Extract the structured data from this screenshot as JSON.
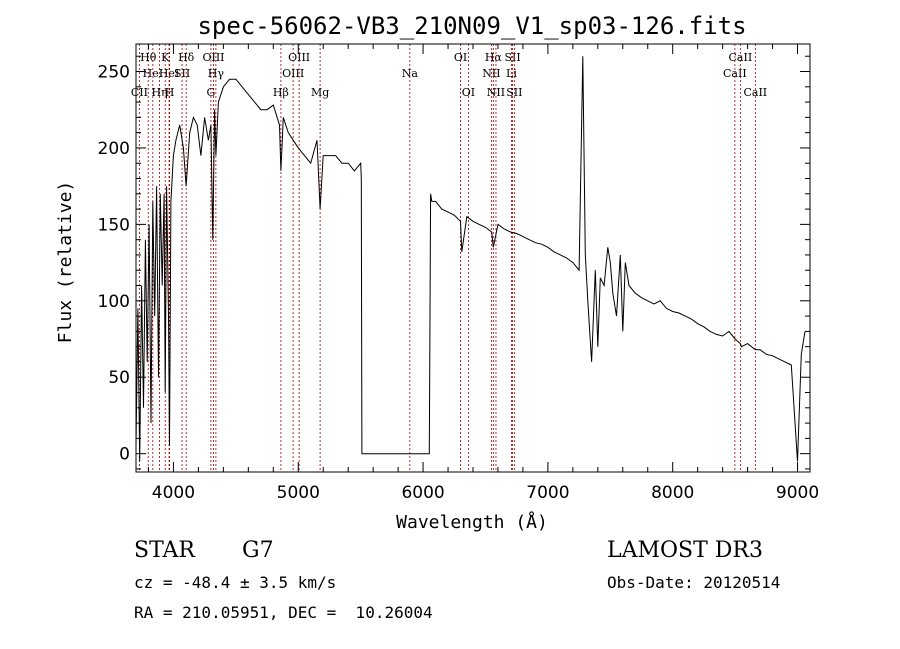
{
  "chart_data": {
    "type": "line",
    "title": "spec-56062-VB3_210N09_V1_sp03-126.fits",
    "xlabel": "Wavelength (Å)",
    "ylabel": "Flux (relative)",
    "xlim": [
      3700,
      9100
    ],
    "ylim": [
      -12,
      268
    ],
    "xticks": [
      4000,
      5000,
      6000,
      7000,
      8000,
      9000
    ],
    "yticks": [
      0,
      50,
      100,
      150,
      200,
      250
    ],
    "series": [
      {
        "name": "flux",
        "x": [
          3700,
          3715,
          3730,
          3745,
          3760,
          3775,
          3790,
          3805,
          3820,
          3835,
          3850,
          3865,
          3880,
          3895,
          3910,
          3925,
          3934,
          3945,
          3960,
          3968,
          3980,
          4000,
          4020,
          4050,
          4080,
          4101,
          4130,
          4160,
          4190,
          4220,
          4250,
          4280,
          4300,
          4315,
          4330,
          4340,
          4360,
          4400,
          4450,
          4500,
          4550,
          4600,
          4650,
          4700,
          4750,
          4800,
          4850,
          4861,
          4880,
          4920,
          4960,
          5000,
          5050,
          5100,
          5150,
          5175,
          5200,
          5250,
          5300,
          5350,
          5400,
          5450,
          5500,
          5505,
          5510,
          5550,
          6050,
          6060,
          6070,
          6100,
          6150,
          6200,
          6250,
          6300,
          6310,
          6350,
          6400,
          6450,
          6500,
          6550,
          6563,
          6600,
          6650,
          6700,
          6750,
          6800,
          6850,
          6900,
          6950,
          7000,
          7050,
          7100,
          7150,
          7200,
          7250,
          7280,
          7300,
          7320,
          7350,
          7380,
          7400,
          7420,
          7450,
          7480,
          7500,
          7520,
          7550,
          7580,
          7600,
          7620,
          7650,
          7700,
          7750,
          7800,
          7850,
          7900,
          7950,
          8000,
          8050,
          8100,
          8150,
          8200,
          8250,
          8300,
          8350,
          8400,
          8450,
          8500,
          8542,
          8550,
          8600,
          8662,
          8700,
          8750,
          8800,
          8850,
          8900,
          8950,
          9000,
          9030,
          9060
        ],
        "values": [
          5,
          95,
          -5,
          110,
          30,
          140,
          60,
          150,
          20,
          165,
          90,
          175,
          50,
          170,
          110,
          170,
          40,
          175,
          90,
          5,
          165,
          195,
          205,
          215,
          200,
          175,
          210,
          220,
          215,
          195,
          220,
          205,
          215,
          140,
          225,
          195,
          230,
          240,
          245,
          245,
          240,
          235,
          230,
          225,
          225,
          228,
          215,
          185,
          220,
          210,
          205,
          200,
          195,
          190,
          205,
          160,
          195,
          195,
          195,
          190,
          190,
          185,
          190,
          180,
          0,
          0,
          0,
          170,
          165,
          165,
          160,
          158,
          156,
          152,
          132,
          155,
          152,
          150,
          148,
          145,
          135,
          150,
          147,
          145,
          144,
          142,
          140,
          138,
          137,
          135,
          132,
          130,
          128,
          125,
          120,
          260,
          130,
          100,
          60,
          120,
          70,
          115,
          110,
          135,
          125,
          105,
          90,
          130,
          80,
          125,
          110,
          105,
          102,
          100,
          98,
          100,
          95,
          93,
          92,
          90,
          88,
          85,
          83,
          80,
          78,
          77,
          80,
          75,
          72,
          70,
          72,
          68,
          68,
          65,
          64,
          62,
          60,
          58,
          -5,
          65,
          80
        ]
      }
    ],
    "lines": [
      {
        "name": "CII",
        "wavelength": 3727,
        "row": 3
      },
      {
        "name": "Hθ",
        "wavelength": 3798,
        "row": 1
      },
      {
        "name": "HeI",
        "wavelength": 3835,
        "row": 2
      },
      {
        "name": "Hη",
        "wavelength": 3889,
        "row": 3
      },
      {
        "name": "K",
        "wavelength": 3934,
        "row": 1
      },
      {
        "name": "HeI",
        "wavelength": 3965,
        "row": 2
      },
      {
        "name": "H",
        "wavelength": 3969,
        "row": 3
      },
      {
        "name": "SII",
        "wavelength": 4069,
        "row": 2
      },
      {
        "name": "Hδ",
        "wavelength": 4102,
        "row": 1
      },
      {
        "name": "G",
        "wavelength": 4300,
        "row": 3
      },
      {
        "name": "OIII",
        "wavelength": 4321,
        "row": 1
      },
      {
        "name": "Hγ",
        "wavelength": 4340,
        "row": 2
      },
      {
        "name": "Hβ",
        "wavelength": 4861,
        "row": 3
      },
      {
        "name": "OIII",
        "wavelength": 4959,
        "row": 2
      },
      {
        "name": "OIII",
        "wavelength": 5007,
        "row": 1
      },
      {
        "name": "Mg",
        "wavelength": 5175,
        "row": 3
      },
      {
        "name": "Na",
        "wavelength": 5894,
        "row": 2
      },
      {
        "name": "OI",
        "wavelength": 6300,
        "row": 1
      },
      {
        "name": "OI",
        "wavelength": 6363,
        "row": 3
      },
      {
        "name": "NII",
        "wavelength": 6548,
        "row": 2
      },
      {
        "name": "Hα",
        "wavelength": 6563,
        "row": 1
      },
      {
        "name": "NII",
        "wavelength": 6584,
        "row": 3
      },
      {
        "name": "Li",
        "wavelength": 6708,
        "row": 2
      },
      {
        "name": "SII",
        "wavelength": 6717,
        "row": 1
      },
      {
        "name": "SII",
        "wavelength": 6731,
        "row": 3
      },
      {
        "name": "CaII",
        "wavelength": 8498,
        "row": 2
      },
      {
        "name": "CaII",
        "wavelength": 8542,
        "row": 1
      },
      {
        "name": "CaII",
        "wavelength": 8662,
        "row": 3
      }
    ]
  },
  "info": {
    "object_class": "STAR",
    "subclass": "G7",
    "survey": "LAMOST DR3",
    "cz": "cz = -48.4 ± 3.5 km/s",
    "obs_date": "Obs-Date: 20120514",
    "coords": "RA = 210.05951, DEC =  10.26004"
  }
}
